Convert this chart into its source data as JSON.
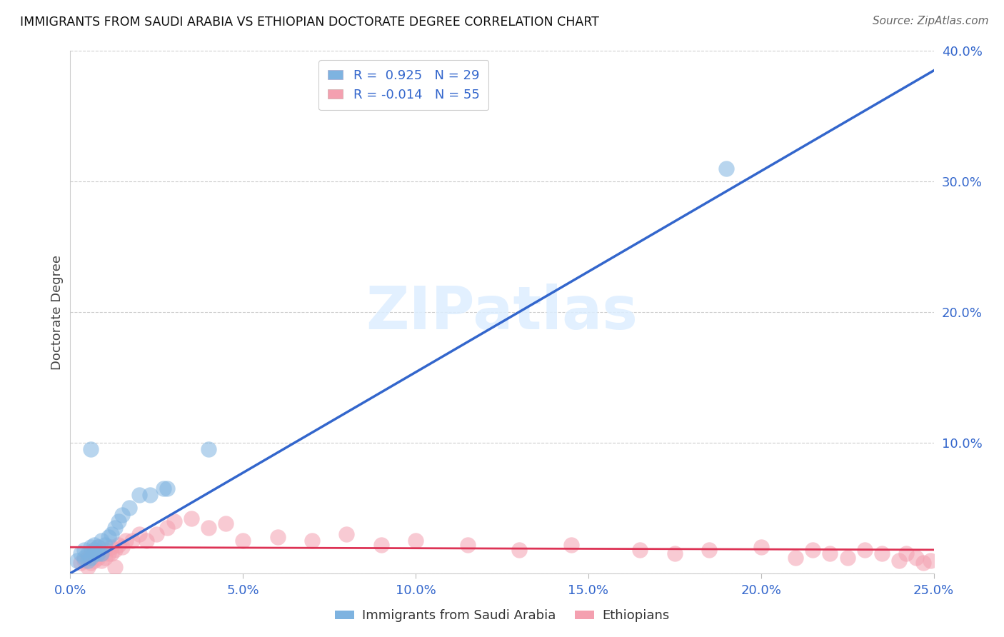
{
  "title": "IMMIGRANTS FROM SAUDI ARABIA VS ETHIOPIAN DOCTORATE DEGREE CORRELATION CHART",
  "source": "Source: ZipAtlas.com",
  "xlabel_blue": "Immigrants from Saudi Arabia",
  "xlabel_pink": "Ethiopians",
  "ylabel": "Doctorate Degree",
  "xlim": [
    0.0,
    0.25
  ],
  "ylim": [
    0.0,
    0.4
  ],
  "xticks": [
    0.0,
    0.05,
    0.1,
    0.15,
    0.2,
    0.25
  ],
  "yticks": [
    0.0,
    0.1,
    0.2,
    0.3,
    0.4
  ],
  "ytick_labels_right": [
    "",
    "10.0%",
    "20.0%",
    "30.0%",
    "40.0%"
  ],
  "xtick_labels": [
    "0.0%",
    "",
    "5.0%",
    "",
    "10.0%",
    "",
    "15.0%",
    "",
    "20.0%",
    "",
    "25.0%"
  ],
  "blue_color": "#7EB3E0",
  "pink_color": "#F4A0B0",
  "blue_line_color": "#3366CC",
  "pink_line_color": "#DD3355",
  "tick_label_color": "#3366CC",
  "legend_R_blue": "0.925",
  "legend_N_blue": "29",
  "legend_R_pink": "-0.014",
  "legend_N_pink": "55",
  "watermark": "ZIPatlas",
  "blue_scatter_x": [
    0.002,
    0.003,
    0.004,
    0.004,
    0.005,
    0.005,
    0.006,
    0.006,
    0.007,
    0.007,
    0.007,
    0.008,
    0.008,
    0.009,
    0.009,
    0.01,
    0.011,
    0.012,
    0.013,
    0.014,
    0.015,
    0.017,
    0.02,
    0.023,
    0.027,
    0.028,
    0.04,
    0.19,
    0.006
  ],
  "blue_scatter_y": [
    0.01,
    0.015,
    0.012,
    0.018,
    0.01,
    0.015,
    0.012,
    0.02,
    0.015,
    0.018,
    0.022,
    0.015,
    0.02,
    0.015,
    0.025,
    0.022,
    0.028,
    0.03,
    0.035,
    0.04,
    0.045,
    0.05,
    0.06,
    0.06,
    0.065,
    0.065,
    0.095,
    0.31,
    0.095
  ],
  "pink_scatter_x": [
    0.003,
    0.004,
    0.005,
    0.005,
    0.006,
    0.006,
    0.007,
    0.007,
    0.008,
    0.008,
    0.009,
    0.009,
    0.01,
    0.01,
    0.011,
    0.012,
    0.012,
    0.013,
    0.014,
    0.015,
    0.016,
    0.018,
    0.02,
    0.022,
    0.025,
    0.028,
    0.03,
    0.035,
    0.04,
    0.045,
    0.05,
    0.06,
    0.07,
    0.08,
    0.09,
    0.1,
    0.115,
    0.13,
    0.145,
    0.165,
    0.175,
    0.185,
    0.2,
    0.21,
    0.215,
    0.22,
    0.225,
    0.23,
    0.235,
    0.24,
    0.242,
    0.245,
    0.247,
    0.249,
    0.013
  ],
  "pink_scatter_y": [
    0.008,
    0.01,
    0.005,
    0.012,
    0.008,
    0.015,
    0.01,
    0.018,
    0.012,
    0.02,
    0.01,
    0.015,
    0.012,
    0.018,
    0.015,
    0.02,
    0.015,
    0.018,
    0.022,
    0.02,
    0.025,
    0.025,
    0.03,
    0.025,
    0.03,
    0.035,
    0.04,
    0.042,
    0.035,
    0.038,
    0.025,
    0.028,
    0.025,
    0.03,
    0.022,
    0.025,
    0.022,
    0.018,
    0.022,
    0.018,
    0.015,
    0.018,
    0.02,
    0.012,
    0.018,
    0.015,
    0.012,
    0.018,
    0.015,
    0.01,
    0.015,
    0.012,
    0.008,
    0.01,
    0.005
  ],
  "blue_regline_x": [
    0.0,
    0.25
  ],
  "blue_regline_y": [
    0.0,
    0.385
  ],
  "pink_regline_x": [
    0.0,
    0.25
  ],
  "pink_regline_y": [
    0.02,
    0.018
  ]
}
